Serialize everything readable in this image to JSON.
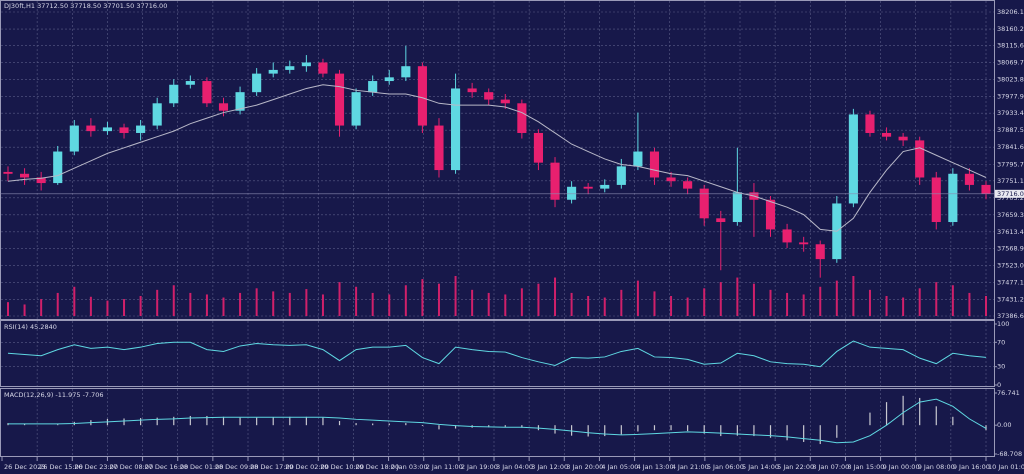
{
  "chart_data": [
    {
      "type": "candlestick",
      "title": "DJ30ft,H1  37712.50 37718.50 37701.50 37716.00",
      "up_color": "#5fd8e2",
      "down_color": "#e8206f",
      "ma_color": "#b8b8c8",
      "volume_color": "#d0206a",
      "ylim": [
        37386.65,
        38206.1
      ],
      "yticks": [
        {
          "value": 38206.1,
          "label": "38206.10"
        },
        {
          "value": 38160.2,
          "label": "38160.20"
        },
        38115.65,
        38069.75,
        38023.85,
        37977.95,
        {
          "value": 37933.4,
          "label": "37933.40"
        },
        {
          "value": 37887.5,
          "label": "37887.50"
        },
        {
          "value": 37841.6,
          "label": "37841.60"
        },
        {
          "value": 37795.7,
          "label": "37795.70"
        },
        37751.15,
        37705.25,
        37659.35,
        37613.45,
        {
          "value": 37568.9,
          "label": "37568.90"
        },
        {
          "value": 37523,
          "label": "37523.00"
        },
        {
          "value": 37477.1,
          "label": "37477.10"
        },
        {
          "value": 37431.2,
          "label": "37431.20"
        },
        37386.65
      ],
      "last_price": {
        "value": 37716,
        "label": "37716.00"
      },
      "grid": true,
      "time_labels": [
        "26 Dec 2023",
        "26 Dec 15:00",
        "26 Dec 23:00",
        "27 Dec 08:00",
        "27 Dec 16:00",
        "28 Dec 01:00",
        "28 Dec 09:00",
        "28 Dec 17:00",
        "29 Dec 02:00",
        "29 Dec 10:00",
        "29 Dec 18:00",
        "2 Jan 03:00",
        "2 Jan 11:00",
        "2 Jan 19:00",
        "3 Jan 04:00",
        "3 Jan 12:00",
        "3 Jan 20:00",
        "4 Jan 05:00",
        "4 Jan 13:00",
        "4 Jan 21:00",
        "5 Jan 06:00",
        "5 Jan 14:00",
        "5 Jan 22:00",
        "8 Jan 07:00",
        "8 Jan 15:00",
        "9 Jan 00:00",
        "9 Jan 08:00",
        "9 Jan 16:00",
        "10 Jan 01:00"
      ],
      "ohlc": [
        [
          37775,
          37790,
          37750,
          37770
        ],
        [
          37770,
          37785,
          37740,
          37760
        ],
        [
          37760,
          37775,
          37725,
          37745
        ],
        [
          37745,
          37845,
          37740,
          37830
        ],
        [
          37830,
          37915,
          37820,
          37900
        ],
        [
          37900,
          37920,
          37870,
          37885
        ],
        [
          37885,
          37910,
          37875,
          37895
        ],
        [
          37895,
          37905,
          37865,
          37880
        ],
        [
          37880,
          37915,
          37860,
          37900
        ],
        [
          37900,
          37975,
          37890,
          37960
        ],
        [
          37960,
          38025,
          37950,
          38010
        ],
        [
          38010,
          38035,
          38000,
          38020
        ],
        [
          38020,
          38030,
          37950,
          37960
        ],
        [
          37960,
          37975,
          37925,
          37940
        ],
        [
          37940,
          38005,
          37930,
          37990
        ],
        [
          37990,
          38055,
          37980,
          38040
        ],
        [
          38040,
          38070,
          38030,
          38050
        ],
        [
          38050,
          38075,
          38040,
          38060
        ],
        [
          38060,
          38090,
          38045,
          38070
        ],
        [
          38070,
          38080,
          38030,
          38040
        ],
        [
          38040,
          38050,
          37870,
          37900
        ],
        [
          37900,
          38000,
          37890,
          37990
        ],
        [
          37990,
          38035,
          37980,
          38020
        ],
        [
          38020,
          38050,
          38010,
          38030
        ],
        [
          38030,
          38115,
          38020,
          38060
        ],
        [
          38060,
          38070,
          37880,
          37900
        ],
        [
          37900,
          37920,
          37760,
          37780
        ],
        [
          37780,
          38040,
          37770,
          38000
        ],
        [
          38000,
          38015,
          37975,
          37990
        ],
        [
          37990,
          38000,
          37955,
          37970
        ],
        [
          37970,
          37985,
          37945,
          37960
        ],
        [
          37960,
          37970,
          37865,
          37880
        ],
        [
          37880,
          37890,
          37780,
          37800
        ],
        [
          37800,
          37815,
          37680,
          37700
        ],
        [
          37700,
          37750,
          37690,
          37735
        ],
        [
          37735,
          37745,
          37715,
          37730
        ],
        [
          37730,
          37755,
          37720,
          37740
        ],
        [
          37740,
          37810,
          37730,
          37790
        ],
        [
          37790,
          37935,
          37780,
          37830
        ],
        [
          37830,
          37840,
          37740,
          37760
        ],
        [
          37760,
          37775,
          37735,
          37750
        ],
        [
          37750,
          37760,
          37715,
          37730
        ],
        [
          37730,
          37740,
          37630,
          37650
        ],
        [
          37650,
          37670,
          37510,
          37640
        ],
        [
          37640,
          37840,
          37630,
          37720
        ],
        [
          37720,
          37745,
          37600,
          37700
        ],
        [
          37700,
          37710,
          37600,
          37620
        ],
        [
          37620,
          37635,
          37570,
          37585
        ],
        [
          37585,
          37600,
          37560,
          37580
        ],
        [
          37580,
          37590,
          37490,
          37540
        ],
        [
          37540,
          37710,
          37530,
          37690
        ],
        [
          37690,
          37945,
          37680,
          37930
        ],
        [
          37930,
          37940,
          37870,
          37880
        ],
        [
          37880,
          37895,
          37860,
          37870
        ],
        [
          37870,
          37880,
          37845,
          37860
        ],
        [
          37860,
          37870,
          37740,
          37760
        ],
        [
          37760,
          37775,
          37620,
          37640
        ],
        [
          37640,
          37785,
          37630,
          37770
        ],
        [
          37770,
          37785,
          37725,
          37740
        ],
        [
          37740,
          37750,
          37701.5,
          37716
        ]
      ],
      "ma": [
        37750,
        37755,
        37758,
        37765,
        37785,
        37805,
        37825,
        37840,
        37855,
        37870,
        37885,
        37905,
        37920,
        37935,
        37945,
        37955,
        37970,
        37985,
        38000,
        38010,
        38005,
        37995,
        37990,
        37985,
        37985,
        37975,
        37960,
        37955,
        37955,
        37955,
        37950,
        37935,
        37910,
        37880,
        37850,
        37830,
        37810,
        37795,
        37790,
        37780,
        37770,
        37765,
        37750,
        37735,
        37720,
        37710,
        37695,
        37680,
        37660,
        37620,
        37615,
        37650,
        37720,
        37780,
        37830,
        37840,
        37820,
        37800,
        37780,
        37760
      ],
      "volume": [
        18,
        15,
        22,
        30,
        38,
        25,
        20,
        22,
        26,
        34,
        40,
        30,
        28,
        24,
        30,
        36,
        32,
        30,
        35,
        28,
        44,
        38,
        30,
        28,
        40,
        48,
        42,
        52,
        34,
        30,
        28,
        36,
        42,
        50,
        30,
        26,
        24,
        34,
        46,
        32,
        26,
        24,
        36,
        44,
        50,
        42,
        34,
        30,
        28,
        38,
        46,
        52,
        34,
        26,
        24,
        36,
        44,
        40,
        30,
        26
      ]
    },
    {
      "type": "line",
      "title": "RSI(14) 45.2840",
      "color": "#5fd8e2",
      "ylim": [
        0,
        100
      ],
      "yticks": [
        100,
        70,
        30,
        0
      ],
      "levels": [
        70,
        30
      ],
      "values": [
        52,
        50,
        48,
        58,
        66,
        60,
        62,
        58,
        62,
        68,
        70,
        70,
        58,
        55,
        64,
        68,
        66,
        65,
        66,
        58,
        40,
        58,
        62,
        62,
        65,
        45,
        35,
        62,
        58,
        55,
        54,
        45,
        38,
        32,
        45,
        44,
        46,
        55,
        60,
        46,
        45,
        42,
        34,
        36,
        52,
        48,
        38,
        35,
        34,
        30,
        55,
        72,
        62,
        60,
        58,
        44,
        35,
        52,
        48,
        45.284
      ]
    },
    {
      "type": "macd",
      "title": "MACD(12,26,9) -11.975 -7.706",
      "hist_color": "#c8c8d0",
      "signal_color": "#5fd8e2",
      "ylim": [
        -68.708,
        76.741
      ],
      "yticks": [
        76.741,
        {
          "value": 0,
          "label": "0.00"
        },
        -68.708
      ],
      "histogram": [
        5,
        3,
        0,
        2,
        8,
        12,
        15,
        16,
        17,
        18,
        20,
        22,
        22,
        20,
        18,
        18,
        19,
        20,
        20,
        18,
        10,
        5,
        4,
        4,
        5,
        -2,
        -10,
        -8,
        -6,
        -5,
        -4,
        -6,
        -12,
        -20,
        -25,
        -27,
        -26,
        -22,
        -15,
        -12,
        -12,
        -14,
        -20,
        -26,
        -25,
        -26,
        -30,
        -36,
        -40,
        -45,
        -30,
        0,
        30,
        55,
        70,
        65,
        45,
        20,
        0,
        -11.975
      ],
      "signal": [
        3,
        3,
        3,
        3,
        4,
        6,
        8,
        10,
        12,
        14,
        15,
        17,
        18,
        19,
        19,
        19,
        19,
        19,
        19,
        19,
        17,
        14,
        12,
        10,
        8,
        6,
        2,
        -1,
        -3,
        -4,
        -5,
        -5,
        -7,
        -10,
        -14,
        -18,
        -21,
        -23,
        -22,
        -20,
        -18,
        -16,
        -17,
        -19,
        -21,
        -23,
        -25,
        -28,
        -32,
        -36,
        -42,
        -40,
        -25,
        0,
        30,
        55,
        62,
        45,
        15,
        -7.706
      ]
    }
  ]
}
